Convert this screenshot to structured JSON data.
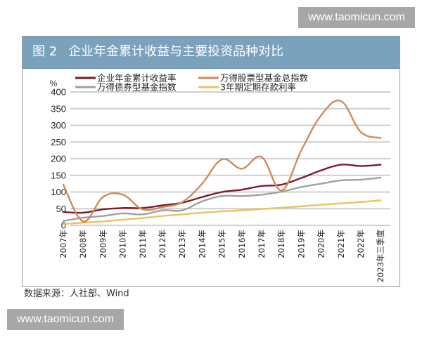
{
  "watermark": {
    "top": "www.taomicun.com",
    "bottom": "www.taomicun.com"
  },
  "figure": {
    "number": "图 2",
    "title": "企业年金累计收益与主要投资品种对比"
  },
  "source": "数据来源：人社部、Wind",
  "colors": {
    "title_bar": "#7aa2bd",
    "enterprise_annuity": "#7a1a2a",
    "stock_fund_index": "#d08a5a",
    "bond_fund_index": "#a0a0a0",
    "deposit_rate": "#e8c45a",
    "grid": "#cfcfcf"
  },
  "chart_data": {
    "type": "line",
    "title": "企业年金累计收益与主要投资品种对比",
    "xlabel": "",
    "ylabel": "%",
    "ylim": [
      0,
      400
    ],
    "yticks": [
      0,
      50,
      100,
      150,
      200,
      250,
      300,
      350,
      400
    ],
    "grid": true,
    "legend_position": "top",
    "categories": [
      "2007年",
      "2008年",
      "2009年",
      "2010年",
      "2011年",
      "2012年",
      "2013年",
      "2014年",
      "2015年",
      "2016年",
      "2017年",
      "2018年",
      "2019年",
      "2020年",
      "2021年",
      "2022年",
      "2023年三季度"
    ],
    "series": [
      {
        "name": "企业年金累计收益率",
        "color": "#7a1a2a",
        "values": [
          40,
          38,
          48,
          52,
          52,
          60,
          68,
          85,
          100,
          107,
          118,
          122,
          142,
          165,
          182,
          178,
          182
        ]
      },
      {
        "name": "万得股票型基金总指数",
        "color": "#d08a5a",
        "values": [
          122,
          12,
          85,
          92,
          48,
          55,
          70,
          125,
          198,
          170,
          205,
          105,
          225,
          330,
          373,
          280,
          262
        ]
      },
      {
        "name": "万得债券型基金指数",
        "color": "#a0a0a0",
        "values": [
          13,
          23,
          28,
          36,
          33,
          45,
          45,
          72,
          88,
          88,
          92,
          101,
          115,
          125,
          135,
          137,
          143
        ]
      },
      {
        "name": "3年期定期存款利率",
        "color": "#e8c45a",
        "values": [
          4,
          8,
          12,
          17,
          22,
          28,
          33,
          38,
          42,
          45,
          49,
          53,
          57,
          62,
          66,
          70,
          75
        ]
      }
    ]
  }
}
